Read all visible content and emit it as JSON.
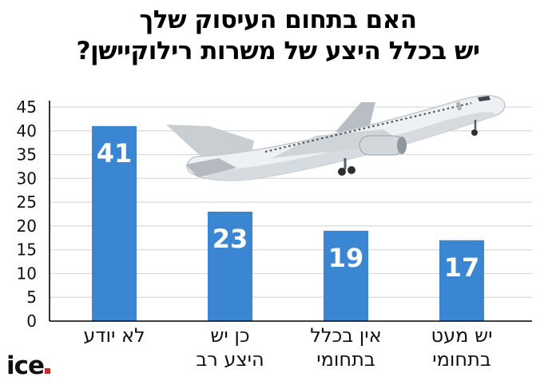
{
  "title_lines": [
    "האם בתחום העיסוק שלך",
    "יש בכלל היצע של משרות רילוקיישן?"
  ],
  "logo": {
    "text": "ice",
    "accent_color": "#d8232a"
  },
  "colors": {
    "bar": "#3a86d2",
    "grid": "#d9d9d9",
    "axis": "#000000",
    "label_text": "#ffffff"
  },
  "chart_data": {
    "type": "bar",
    "title": "האם בתחום העיסוק שלך יש בכלל היצע של משרות רילוקיישן?",
    "categories": [
      [
        "לא יודע"
      ],
      [
        "כן יש",
        "היצע רב"
      ],
      [
        "אין בכלל",
        "בתחומי"
      ],
      [
        "יש מעט",
        "בתחומי"
      ]
    ],
    "values": [
      41,
      23,
      19,
      17
    ],
    "ylim": [
      0,
      45
    ],
    "yticks": [
      0,
      5,
      10,
      15,
      20,
      25,
      30,
      35,
      40,
      45
    ],
    "xlabel": "",
    "ylabel": "",
    "grid": true,
    "data_labels": true
  }
}
